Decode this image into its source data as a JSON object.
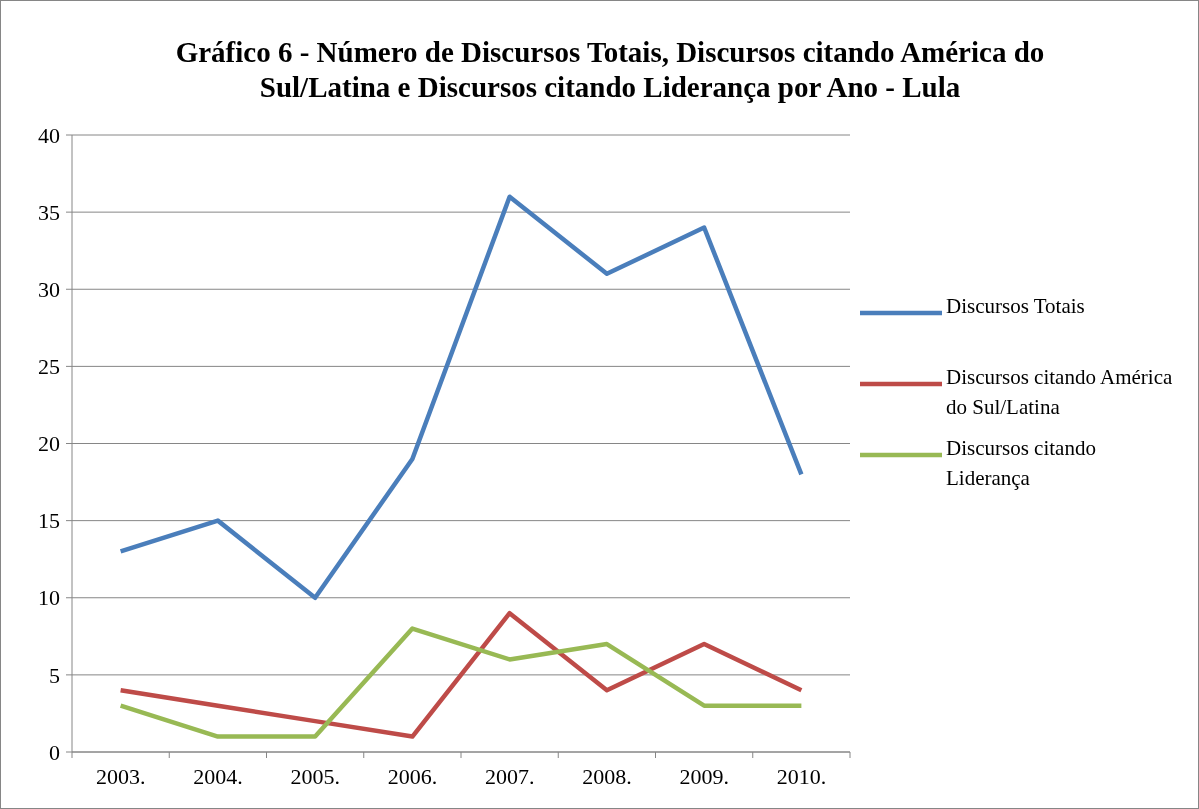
{
  "chart_data": {
    "type": "line",
    "title": "Gráfico 6 - Número de Discursos Totais, Discursos citando América do Sul/Latina e Discursos citando Liderança por Ano - Lula",
    "categories": [
      "2003.",
      "2004.",
      "2005.",
      "2006.",
      "2007.",
      "2008.",
      "2009.",
      "2010."
    ],
    "series": [
      {
        "name": "Discursos Totais",
        "color": "#4a7ebb",
        "values": [
          13,
          15,
          10,
          19,
          36,
          31,
          34,
          18
        ]
      },
      {
        "name": "Discursos citando América do Sul/Latina",
        "color": "#be4b48",
        "values": [
          4,
          3,
          2,
          1,
          9,
          4,
          7,
          4
        ]
      },
      {
        "name": "Discursos citando Liderança",
        "color": "#98b954",
        "values": [
          3,
          1,
          1,
          8,
          6,
          7,
          3,
          3
        ]
      }
    ],
    "ylim": [
      0,
      40
    ],
    "yticks": [
      0,
      5,
      10,
      15,
      20,
      25,
      30,
      35,
      40
    ],
    "grid": "y",
    "legend": "right",
    "marker": "none",
    "line_style": "solid"
  }
}
